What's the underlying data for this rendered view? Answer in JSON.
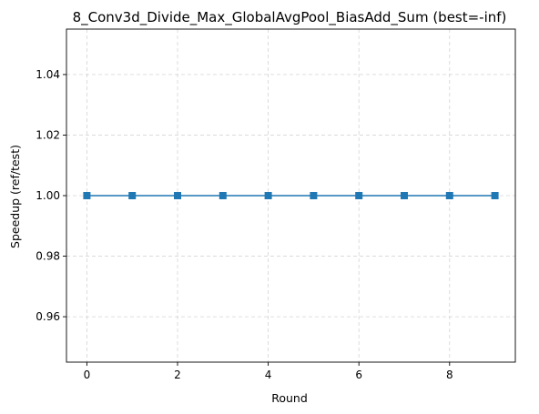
{
  "chart_data": {
    "type": "line",
    "title": "8_Conv3d_Divide_Max_GlobalAvgPool_BiasAdd_Sum (best=-inf)",
    "xlabel": "Round",
    "ylabel": "Speedup (ref/test)",
    "x": [
      0,
      1,
      2,
      3,
      4,
      5,
      6,
      7,
      8,
      9
    ],
    "series": [
      {
        "values": [
          1.0,
          1.0,
          1.0,
          1.0,
          1.0,
          1.0,
          1.0,
          1.0,
          1.0,
          1.0
        ],
        "color": "#1f77b4",
        "marker": "square"
      }
    ],
    "xlim": [
      -0.45,
      9.45
    ],
    "ylim": [
      0.945,
      1.055
    ],
    "xticks": [
      0,
      2,
      4,
      6,
      8
    ],
    "yticks": [
      0.96,
      0.98,
      1.0,
      1.02,
      1.04
    ],
    "xtick_labels": [
      "0",
      "2",
      "4",
      "6",
      "8"
    ],
    "ytick_labels": [
      "0.96",
      "0.98",
      "1.00",
      "1.02",
      "1.04"
    ],
    "grid": true,
    "grid_style": "dashed",
    "legend": "none"
  }
}
